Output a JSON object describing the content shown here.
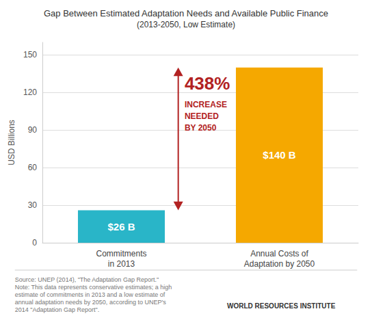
{
  "chart_data": {
    "type": "bar",
    "title": "Gap Between Estimated Adaptation Needs and Available Public Finance",
    "subtitle": "(2013-2050, Low Estimate)",
    "categories": [
      "Commitments\nin 2013",
      "Annual Costs of\nAdaptation by 2050"
    ],
    "values": [
      26,
      140
    ],
    "colors": [
      "#29b5c8",
      "#f5a800"
    ],
    "data_labels": true,
    "value_labels": [
      "$26 B",
      "$140 B"
    ],
    "ylabel": "USD Billions",
    "ylim": [
      0,
      160
    ],
    "yticks": [
      0,
      30,
      60,
      90,
      120,
      150
    ],
    "grid": true,
    "annotations": [
      "438%",
      "INCREASE\nNEEDED\nBY 2050"
    ],
    "source": "Source: UNEP (2014), \"The Adaptation Gap Report.\"\nNote: This data represents conservative estimates; a high\nestimate of commitments in 2013 and a low estimate of\nannual adaptation needs by 2050, according to UNEP's\n2014 \"Adaptation Gap Report\".",
    "credit": "WORLD RESOURCES INSTITUTE"
  }
}
